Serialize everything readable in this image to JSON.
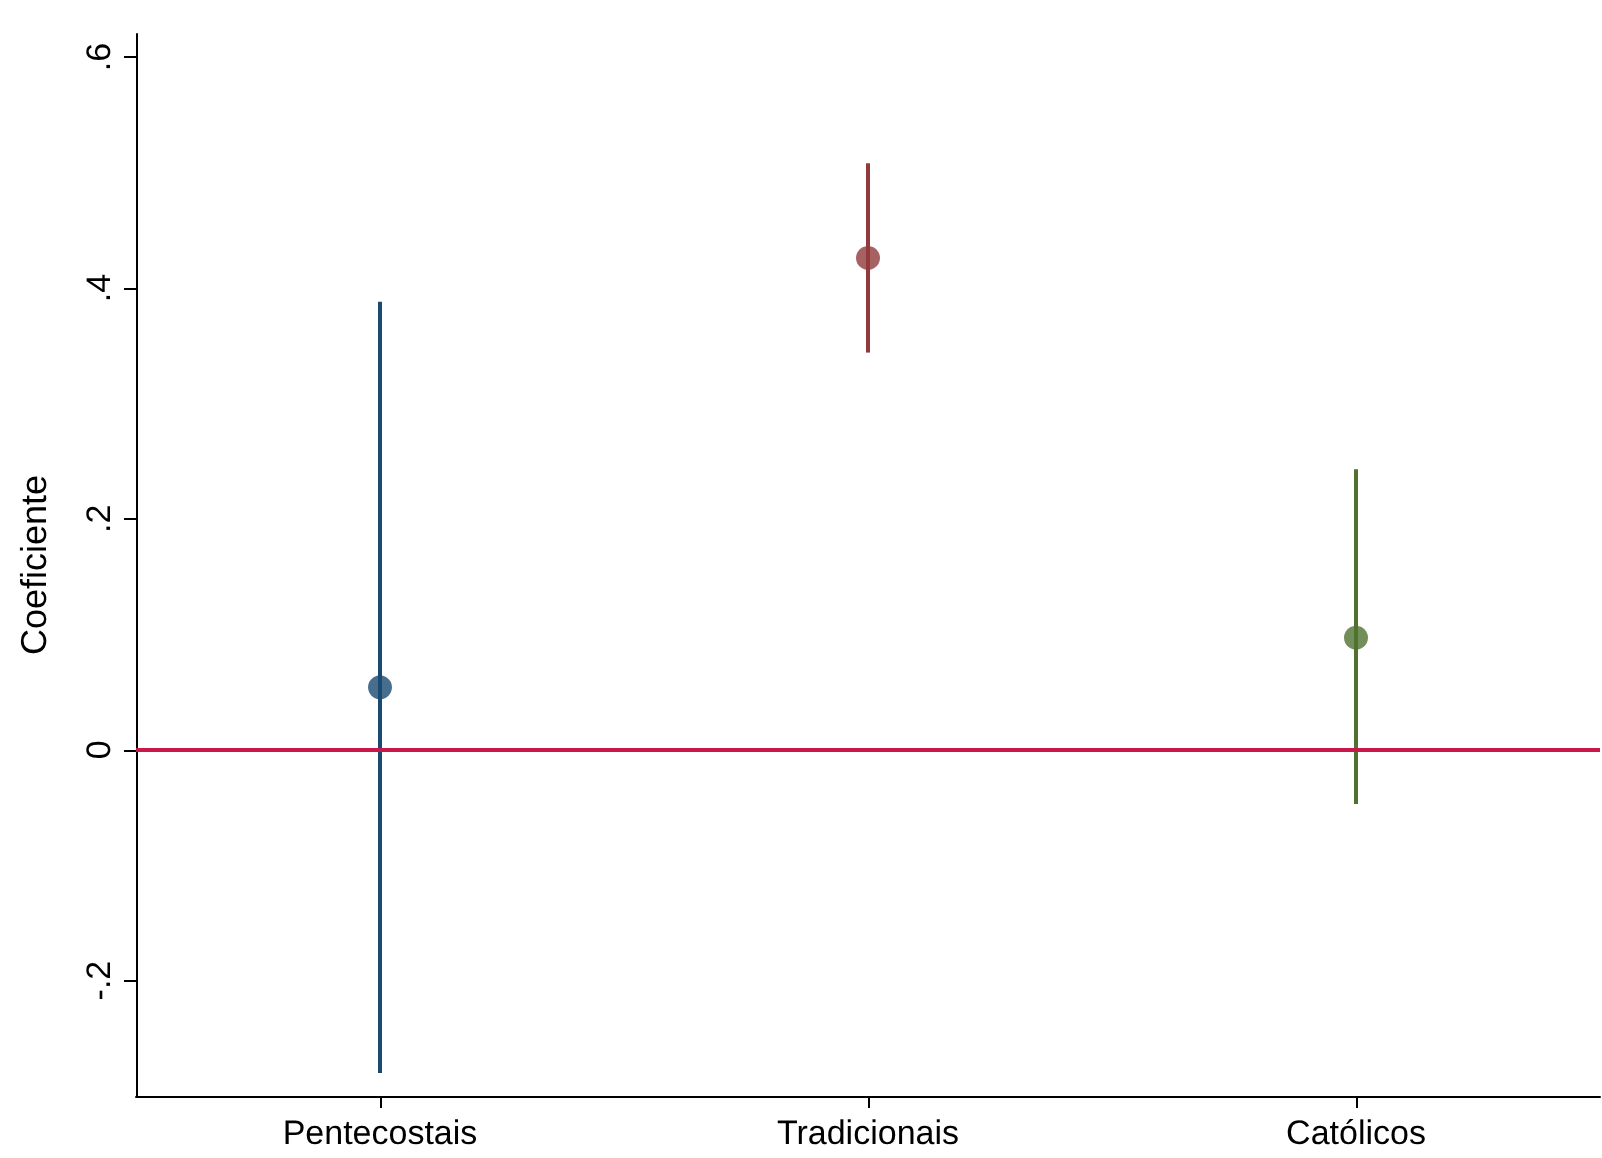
{
  "chart_data": {
    "type": "scatter",
    "ylabel": "Coeficiente",
    "categories": [
      "Pentecostais",
      "Tradicionais",
      "Católicos"
    ],
    "ylim": [
      -0.3,
      0.62
    ],
    "yticks": [
      {
        "value": -0.2,
        "label": "-.2"
      },
      {
        "value": 0,
        "label": "0"
      },
      {
        "value": 0.2,
        "label": ".2"
      },
      {
        "value": 0.4,
        "label": ".4"
      },
      {
        "value": 0.6,
        "label": ".6"
      }
    ],
    "series": [
      {
        "color": "#1a4a72",
        "x": [
          "Pentecostais"
        ],
        "values": [
          0.054
        ],
        "errors": [
          [
            -0.28,
            0.388
          ]
        ]
      },
      {
        "color": "#92393c",
        "x": [
          "Tradicionais"
        ],
        "values": [
          0.426
        ],
        "errors": [
          [
            0.344,
            0.508
          ]
        ]
      },
      {
        "color": "#4f7230",
        "x": [
          "Católicos"
        ],
        "values": [
          0.097
        ],
        "errors": [
          [
            -0.047,
            0.243
          ]
        ]
      }
    ],
    "ref_lines": [
      {
        "axis": "y",
        "value": 0,
        "color": "#c8184a"
      }
    ],
    "marker": "circle",
    "grid": false
  }
}
